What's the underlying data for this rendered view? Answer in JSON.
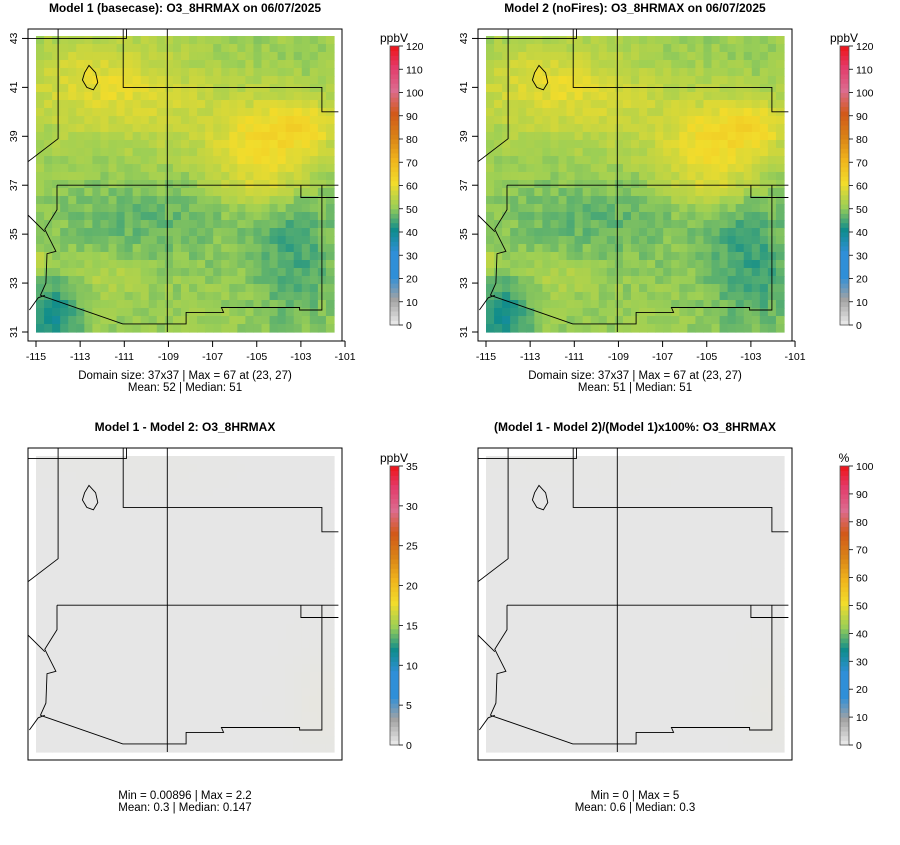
{
  "chart_data": [
    {
      "type": "heatmap",
      "title": "Model 1 (basecase): O3_8HRMAX on 06/07/2025",
      "grid_size": [
        37,
        37
      ],
      "colorbar": {
        "unit": "ppbV",
        "ticks": [
          0,
          10,
          20,
          30,
          40,
          50,
          60,
          70,
          80,
          90,
          100,
          110,
          120
        ],
        "range": [
          0,
          120
        ]
      },
      "xlim": [
        -115.2,
        -101.3
      ],
      "ylim": [
        30.8,
        43.3
      ],
      "x_ticks": [
        -115,
        -113,
        -111,
        -109,
        -107,
        -105,
        -103,
        -101
      ],
      "y_ticks": [
        31,
        33,
        35,
        37,
        39,
        41,
        43
      ],
      "stats": [
        "Domain size: 37x37 | Max = 67 at (23, 27)",
        "Mean: 52 |  Median: 51"
      ],
      "max": 67,
      "mean": 52,
      "median": 51,
      "show_axes": true,
      "field": "base"
    },
    {
      "type": "heatmap",
      "title": "Model 2 (noFires): O3_8HRMAX on 06/07/2025",
      "grid_size": [
        37,
        37
      ],
      "colorbar": {
        "unit": "ppbV",
        "ticks": [
          0,
          10,
          20,
          30,
          40,
          50,
          60,
          70,
          80,
          90,
          100,
          110,
          120
        ],
        "range": [
          0,
          120
        ]
      },
      "xlim": [
        -115.2,
        -101.3
      ],
      "ylim": [
        30.8,
        43.3
      ],
      "x_ticks": [
        -115,
        -113,
        -111,
        -109,
        -107,
        -105,
        -103,
        -101
      ],
      "y_ticks": [
        31,
        33,
        35,
        37,
        39,
        41,
        43
      ],
      "stats": [
        "Domain size: 37x37 | Max = 67 at (23, 27)",
        "Mean: 51 |  Median: 51"
      ],
      "max": 67,
      "mean": 51,
      "median": 51,
      "show_axes": true,
      "field": "nofire"
    },
    {
      "type": "heatmap",
      "title": "Model 1 - Model 2: O3_8HRMAX",
      "colorbar": {
        "unit": "ppbV",
        "ticks": [
          0,
          5,
          10,
          15,
          20,
          25,
          30,
          35
        ],
        "range": [
          0,
          35
        ]
      },
      "stats": [
        "Min = 0.00896 | Max = 2.2",
        "Mean: 0.3 |  Median: 0.147"
      ],
      "min": 0.00896,
      "max": 2.2,
      "mean": 0.3,
      "median": 0.147,
      "show_axes": false,
      "field": "diff"
    },
    {
      "type": "heatmap",
      "title": "(Model 1 - Model 2)/(Model 1)x100%: O3_8HRMAX",
      "colorbar": {
        "unit": "%",
        "ticks": [
          0,
          10,
          20,
          30,
          40,
          50,
          60,
          70,
          80,
          90,
          100
        ],
        "range": [
          0,
          100
        ]
      },
      "stats": [
        "Min = 0 | Max = 5",
        "Mean: 0.6 |  Median: 0.3"
      ],
      "min": 0,
      "max": 5,
      "mean": 0.6,
      "median": 0.3,
      "show_axes": false,
      "field": "pct"
    }
  ],
  "colors": {
    "scale": [
      "#e6e6e6",
      "#a3a3a3",
      "#2f8fd8",
      "#2f8fd8",
      "#0f8c8c",
      "#9ccf55",
      "#f2dc2b",
      "#f0b41c",
      "#d98216",
      "#d2591a",
      "#dc6c8f",
      "#e43b6a",
      "#ef0f0f"
    ],
    "map_border": "#000000",
    "frame": "#000000"
  }
}
